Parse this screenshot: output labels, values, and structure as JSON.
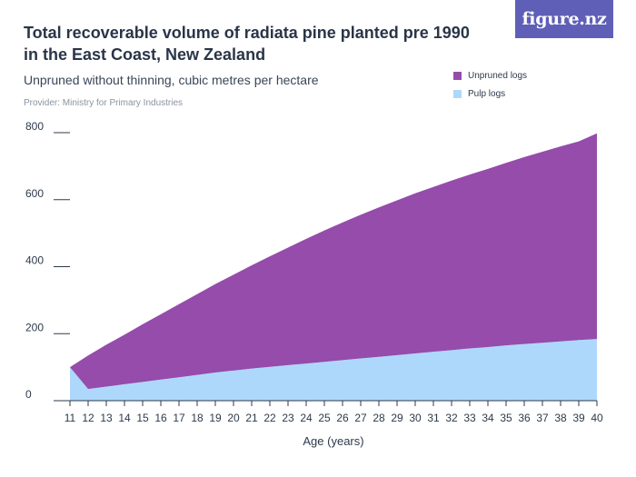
{
  "header": {
    "title": "Total recoverable volume of radiata pine planted pre 1990 in the East Coast, New Zealand",
    "subtitle": "Unpruned without thinning, cubic metres per hectare",
    "provider": "Provider: Ministry for Primary Industries",
    "logo_text": "figure.nz"
  },
  "colors": {
    "unpruned": "#954cab",
    "pulp": "#aed8fb",
    "logo_bg": "#5f5fb8"
  },
  "legend": [
    {
      "label": "Unpruned logs",
      "color": "#954cab"
    },
    {
      "label": "Pulp logs",
      "color": "#aed8fb"
    }
  ],
  "chart_data": {
    "type": "area",
    "stacked": true,
    "xlabel": "Age (years)",
    "ylabel": "",
    "ylim": [
      0,
      800
    ],
    "yticks": [
      0,
      200,
      400,
      600,
      800
    ],
    "grid": false,
    "legend_position": "top-right",
    "x": [
      11,
      12,
      13,
      14,
      15,
      16,
      17,
      18,
      19,
      20,
      21,
      22,
      23,
      24,
      25,
      26,
      27,
      28,
      29,
      30,
      31,
      32,
      33,
      34,
      35,
      36,
      37,
      38,
      39,
      40
    ],
    "series": [
      {
        "name": "Pulp logs",
        "color": "#aed8fb",
        "values": [
          100,
          35,
          42,
          49,
          56,
          63,
          70,
          77,
          84,
          90,
          96,
          101,
          106,
          111,
          116,
          121,
          126,
          131,
          136,
          141,
          146,
          151,
          156,
          160,
          165,
          169,
          173,
          177,
          181,
          184
        ]
      },
      {
        "name": "Unpruned logs",
        "color": "#954cab",
        "values": [
          0,
          100,
          125,
          148,
          172,
          195,
          218,
          241,
          264,
          286,
          308,
          330,
          351,
          372,
          392,
          411,
          429,
          446,
          462,
          478,
          492,
          506,
          519,
          532,
          545,
          558,
          570,
          582,
          593,
          614
        ]
      }
    ]
  }
}
